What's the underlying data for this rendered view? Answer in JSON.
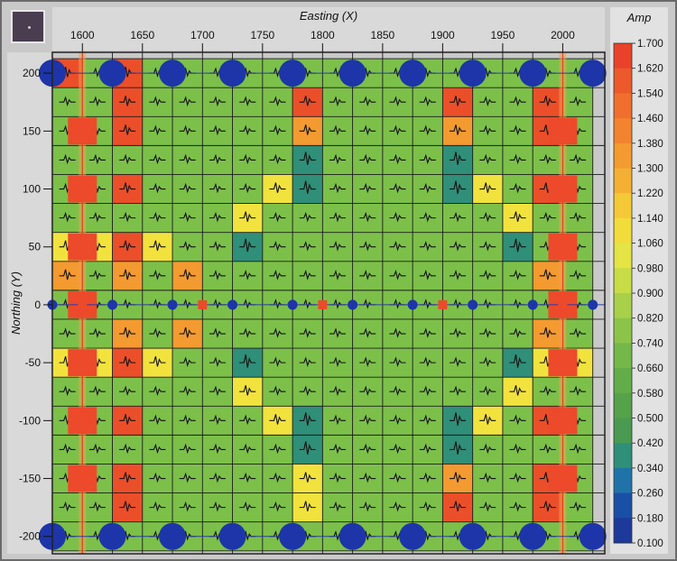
{
  "chart_data": {
    "type": "heatmap",
    "title": "",
    "xlabel": "Easting (X)",
    "ylabel": "Northing (Y)",
    "xlim": [
      1575,
      2035
    ],
    "ylim": [
      -215,
      218
    ],
    "x_ticks": [
      "1600",
      "1650",
      "1700",
      "1750",
      "1800",
      "1850",
      "1900",
      "1950",
      "2000"
    ],
    "y_ticks": [
      "200",
      "150",
      "100",
      "50",
      "0",
      "-50",
      "-100",
      "-150",
      "-200"
    ],
    "grid": true,
    "legend_position": "right",
    "colorbar": {
      "title": "Amp",
      "ticks": [
        "1.700",
        "1.620",
        "1.540",
        "1.460",
        "1.380",
        "1.300",
        "1.220",
        "1.140",
        "1.060",
        "0.980",
        "0.900",
        "0.820",
        "0.740",
        "0.660",
        "0.580",
        "0.500",
        "0.420",
        "0.340",
        "0.260",
        "0.180",
        "0.100"
      ],
      "colors": [
        "#e8432a",
        "#ec5a2c",
        "#f06f2e",
        "#f2842f",
        "#f39a31",
        "#f4b034",
        "#f5c838",
        "#f2dc3c",
        "#e4e445",
        "#c8dc48",
        "#a9d04a",
        "#8cc44a",
        "#74b84a",
        "#62ad49",
        "#55a24a",
        "#4a9a52",
        "#2f8f79",
        "#1f73a8",
        "#1a4fa6",
        "#1d3a9a"
      ]
    },
    "cell_grid": {
      "x_start": 1575,
      "cell_width": 25,
      "y_top": 212.5,
      "cell_height": 25,
      "cols": 18,
      "rows": 17,
      "levels": [
        [
          3,
          1,
          3,
          1,
          1,
          1,
          1,
          1,
          1,
          1,
          1,
          1,
          1,
          1,
          1,
          1,
          1,
          1
        ],
        [
          1,
          1,
          3,
          1,
          1,
          1,
          1,
          1,
          3,
          1,
          1,
          1,
          1,
          3,
          1,
          1,
          3,
          1
        ],
        [
          1,
          1,
          3,
          1,
          1,
          1,
          1,
          1,
          4,
          1,
          1,
          1,
          1,
          4,
          1,
          1,
          3,
          1
        ],
        [
          1,
          1,
          1,
          1,
          1,
          1,
          1,
          1,
          0,
          1,
          1,
          1,
          1,
          0,
          1,
          1,
          1,
          1
        ],
        [
          1,
          1,
          3,
          1,
          1,
          1,
          1,
          2,
          0,
          1,
          1,
          1,
          1,
          0,
          2,
          1,
          3,
          1
        ],
        [
          1,
          1,
          1,
          1,
          1,
          1,
          2,
          1,
          1,
          1,
          1,
          1,
          1,
          1,
          1,
          2,
          1,
          1
        ],
        [
          2,
          2,
          3,
          2,
          1,
          1,
          0,
          1,
          1,
          1,
          1,
          1,
          1,
          1,
          1,
          0,
          1,
          1
        ],
        [
          4,
          1,
          4,
          1,
          4,
          1,
          1,
          1,
          1,
          1,
          1,
          1,
          1,
          1,
          1,
          1,
          4,
          1
        ],
        [
          1,
          1,
          1,
          1,
          1,
          1,
          1,
          1,
          1,
          1,
          1,
          1,
          1,
          1,
          1,
          1,
          1,
          1
        ],
        [
          1,
          1,
          4,
          1,
          4,
          1,
          1,
          1,
          1,
          1,
          1,
          1,
          1,
          1,
          1,
          1,
          4,
          1
        ],
        [
          2,
          2,
          3,
          2,
          1,
          1,
          0,
          1,
          1,
          1,
          1,
          1,
          1,
          1,
          1,
          0,
          2,
          2
        ],
        [
          1,
          1,
          1,
          1,
          1,
          1,
          2,
          1,
          1,
          1,
          1,
          1,
          1,
          1,
          1,
          2,
          1,
          1
        ],
        [
          1,
          1,
          3,
          1,
          1,
          1,
          1,
          2,
          0,
          1,
          1,
          1,
          1,
          0,
          2,
          1,
          3,
          1
        ],
        [
          1,
          1,
          1,
          1,
          1,
          1,
          1,
          1,
          0,
          1,
          1,
          1,
          1,
          0,
          1,
          1,
          1,
          1
        ],
        [
          1,
          1,
          3,
          1,
          1,
          1,
          1,
          1,
          2,
          1,
          1,
          1,
          1,
          4,
          1,
          1,
          3,
          1
        ],
        [
          1,
          1,
          3,
          1,
          1,
          1,
          1,
          1,
          2,
          1,
          1,
          1,
          1,
          3,
          1,
          1,
          3,
          1
        ],
        [
          1,
          1,
          1,
          1,
          1,
          1,
          1,
          1,
          1,
          1,
          1,
          1,
          1,
          1,
          1,
          1,
          1,
          1
        ]
      ]
    },
    "level_colors": [
      "#2f8f79",
      "#7cc04a",
      "#f2e23e",
      "#eb4f2a",
      "#f39a31"
    ],
    "annotations": {
      "source_circles": [
        {
          "x": 1575,
          "y": 200
        },
        {
          "x": 1625,
          "y": 200
        },
        {
          "x": 1675,
          "y": 200
        },
        {
          "x": 1725,
          "y": 200
        },
        {
          "x": 1775,
          "y": 200
        },
        {
          "x": 1825,
          "y": 200
        },
        {
          "x": 1875,
          "y": 200
        },
        {
          "x": 1925,
          "y": 200
        },
        {
          "x": 1975,
          "y": 200
        },
        {
          "x": 2025,
          "y": 200
        },
        {
          "x": 1575,
          "y": -200
        },
        {
          "x": 1625,
          "y": -200
        },
        {
          "x": 1675,
          "y": -200
        },
        {
          "x": 1725,
          "y": -200
        },
        {
          "x": 1775,
          "y": -200
        },
        {
          "x": 1825,
          "y": -200
        },
        {
          "x": 1875,
          "y": -200
        },
        {
          "x": 1925,
          "y": -200
        },
        {
          "x": 1975,
          "y": -200
        },
        {
          "x": 2025,
          "y": -200
        }
      ],
      "small_circles": [
        {
          "x": 1575,
          "y": 0
        },
        {
          "x": 1625,
          "y": 0
        },
        {
          "x": 1675,
          "y": 0
        },
        {
          "x": 1725,
          "y": 0
        },
        {
          "x": 1775,
          "y": 0
        },
        {
          "x": 1825,
          "y": 0
        },
        {
          "x": 1875,
          "y": 0
        },
        {
          "x": 1925,
          "y": 0
        },
        {
          "x": 1975,
          "y": 0
        },
        {
          "x": 2025,
          "y": 0
        }
      ],
      "small_squares": [
        {
          "x": 1600,
          "y": 0
        },
        {
          "x": 1700,
          "y": 0
        },
        {
          "x": 1800,
          "y": 0
        },
        {
          "x": 1900,
          "y": 0
        },
        {
          "x": 2000,
          "y": 0
        }
      ],
      "receiver_lines_x": [
        1600,
        2000
      ],
      "source_lines_y": [
        200,
        0,
        -200
      ]
    }
  }
}
